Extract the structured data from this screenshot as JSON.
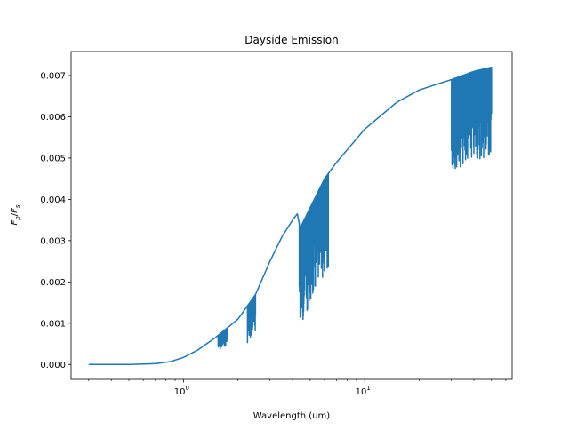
{
  "chart_data": {
    "type": "line",
    "title": "Dayside Emission",
    "xlabel": "Wavelength (um)",
    "ylabel": {
      "base": "F",
      "num_sub": "p",
      "den_sub": "s"
    },
    "xscale": "log",
    "xlim": [
      0.24,
      65
    ],
    "ylim": [
      -0.00036,
      0.00758
    ],
    "grid": false,
    "x_ticks": [
      {
        "value": 1,
        "base": "10",
        "exp": "0"
      },
      {
        "value": 10,
        "base": "10",
        "exp": "1"
      }
    ],
    "y_ticks": [
      {
        "value": 0.0,
        "label": "0.000"
      },
      {
        "value": 0.001,
        "label": "0.001"
      },
      {
        "value": 0.002,
        "label": "0.002"
      },
      {
        "value": 0.003,
        "label": "0.003"
      },
      {
        "value": 0.004,
        "label": "0.004"
      },
      {
        "value": 0.005,
        "label": "0.005"
      },
      {
        "value": 0.006,
        "label": "0.006"
      },
      {
        "value": 0.007,
        "label": "0.007"
      }
    ],
    "series": [
      {
        "color": "#1f77b4",
        "continuum": [
          [
            0.3,
            0.0
          ],
          [
            0.5,
            0.0
          ],
          [
            0.7,
            2e-05
          ],
          [
            0.85,
            7e-05
          ],
          [
            1.0,
            0.00017
          ],
          [
            1.2,
            0.00035
          ],
          [
            1.5,
            0.00065
          ],
          [
            2.0,
            0.0011
          ],
          [
            2.5,
            0.0017
          ],
          [
            3.0,
            0.0025
          ],
          [
            3.5,
            0.0031
          ],
          [
            4.0,
            0.0035
          ],
          [
            4.25,
            0.00365
          ],
          [
            4.4,
            0.0033
          ],
          [
            5.0,
            0.0038
          ],
          [
            6.0,
            0.0045
          ],
          [
            7.0,
            0.0049
          ],
          [
            10.0,
            0.0057
          ],
          [
            15.0,
            0.00635
          ],
          [
            20.0,
            0.00665
          ],
          [
            30.0,
            0.0069
          ],
          [
            40.0,
            0.0071
          ],
          [
            50.0,
            0.0072
          ]
        ],
        "absorption_bands": [
          {
            "range": [
              1.55,
              1.75
            ],
            "depth": 0.0004
          },
          {
            "range": [
              2.25,
              2.5
            ],
            "depth": 0.0009
          },
          {
            "range": [
              4.35,
              6.3
            ],
            "depth": 0.0024
          },
          {
            "range": [
              30.0,
              52.0
            ],
            "depth": 0.0022
          }
        ]
      }
    ]
  }
}
